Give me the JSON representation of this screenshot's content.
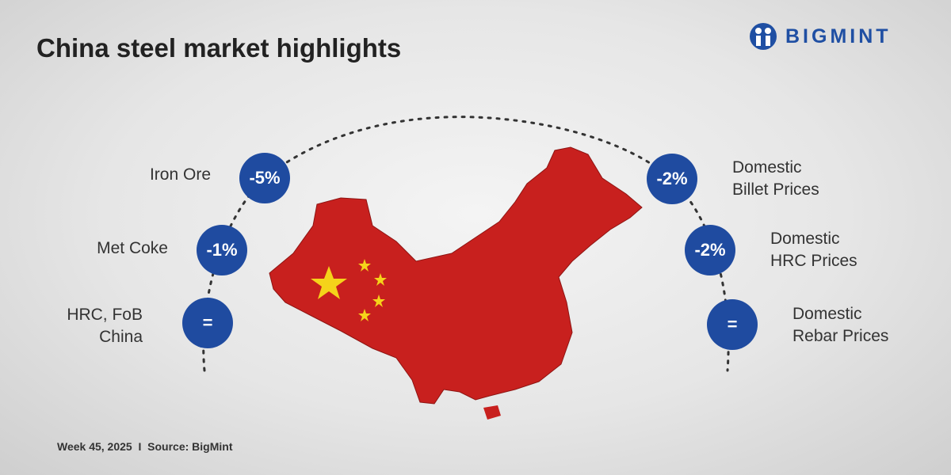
{
  "title": "China steel market highlights",
  "logo": {
    "text": "BIGMINT",
    "color": "#1f4fa3"
  },
  "left_items": [
    {
      "label": "Iron Ore",
      "change": "-5%"
    },
    {
      "label": "Met Coke",
      "change": "-1%"
    },
    {
      "label": "HRC, FoB China",
      "label_lines": [
        "HRC, FoB",
        "China"
      ],
      "change": "="
    }
  ],
  "right_items": [
    {
      "label": "Domestic Billet Prices",
      "label_lines": [
        "Domestic",
        "Billet Prices"
      ],
      "change": "-2%"
    },
    {
      "label": "Domestic HRC Prices",
      "label_lines": [
        "Domestic",
        "HRC Prices"
      ],
      "change": "-2%"
    },
    {
      "label": "Domestic Rebar Prices",
      "label_lines": [
        "Domestic",
        "Rebar Prices"
      ],
      "change": "="
    }
  ],
  "footer": "Week 45, 2025  I  Source: BigMint",
  "colors": {
    "bubble": "#1f4ba0",
    "map": "#c8201e",
    "star": "#f5d31a"
  }
}
